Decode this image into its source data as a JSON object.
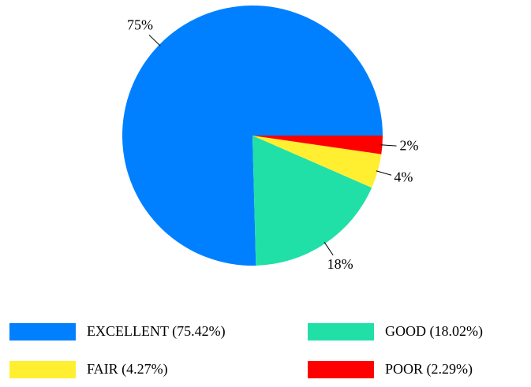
{
  "chart_data": {
    "type": "pie",
    "categories": [
      "EXCELLENT (75.42%)",
      "GOOD (18.02%)",
      "FAIR (4.27%)",
      "POOR (2.29%)"
    ],
    "values": [
      75.42,
      18.02,
      4.27,
      2.29
    ],
    "value_labels": [
      "75%",
      "18%",
      "4%",
      "2%"
    ],
    "colors": [
      "#0080ff",
      "#20e0a8",
      "#ffef30",
      "#ff0000"
    ],
    "legend": "bottom"
  }
}
